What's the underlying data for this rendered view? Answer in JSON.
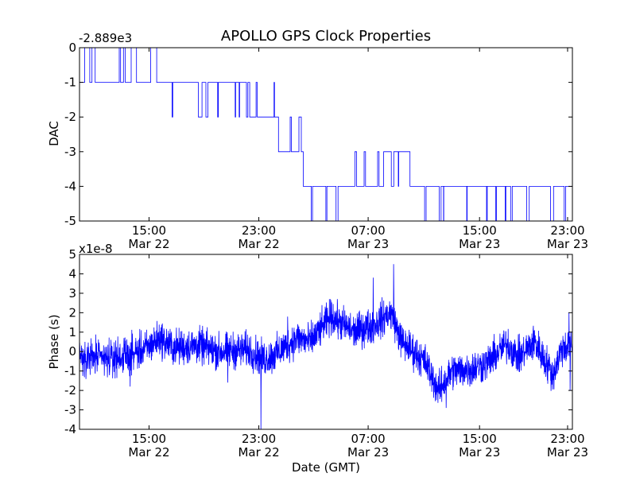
{
  "chart_data": [
    {
      "type": "line",
      "id": "dac",
      "title": "APOLLO GPS Clock Properties",
      "offset_label": "-2.889e3",
      "xlabel": "",
      "ylabel": "DAC",
      "ylim": [
        -5,
        0
      ],
      "yticks": [
        {
          "value": 0,
          "label": "0"
        },
        {
          "value": -1,
          "label": "-1"
        },
        {
          "value": -2,
          "label": "-2"
        },
        {
          "value": -3,
          "label": "-3"
        },
        {
          "value": -4,
          "label": "-4"
        },
        {
          "value": -5,
          "label": "-5"
        }
      ],
      "xlim_hours": [
        11.9,
        33.45
      ],
      "xticks": [
        {
          "hour": 14.94,
          "time": "15:00",
          "date": "Mar 22"
        },
        {
          "hour": 19.74,
          "time": "23:00",
          "date": "Mar 22"
        },
        {
          "hour": 24.52,
          "time": "07:00",
          "date": "Mar 23"
        },
        {
          "hour": 29.39,
          "time": "15:00",
          "date": "Mar 23"
        },
        {
          "hour": 33.24,
          "time": "23:00",
          "date": "Mar 23"
        }
      ],
      "color": "#0000ff",
      "segments": [
        {
          "start": 11.9,
          "end": 15.28,
          "base": -1,
          "alt": 0,
          "rate": 0.6
        },
        {
          "start": 15.28,
          "end": 15.73,
          "base": -1,
          "alt": -2,
          "rate": 0.05
        },
        {
          "start": 15.73,
          "end": 19.34,
          "base": -1,
          "alt": -2,
          "rate": 0.42
        },
        {
          "start": 19.34,
          "end": 20.6,
          "base": -2,
          "alt": -1,
          "rate": 0.35
        },
        {
          "start": 20.6,
          "end": 21.68,
          "base": -3,
          "alt": -2,
          "rate": 0.3
        },
        {
          "start": 21.68,
          "end": 23.94,
          "base": -4,
          "alt": -5,
          "rate": 0.5
        },
        {
          "start": 23.94,
          "end": 25.2,
          "base": -4,
          "alt": -3,
          "rate": 0.3
        },
        {
          "start": 25.2,
          "end": 26.35,
          "base": -3,
          "alt": -4,
          "rate": 0.35
        },
        {
          "start": 26.35,
          "end": 33.45,
          "base": -4,
          "alt": -5,
          "rate": 0.28
        }
      ]
    },
    {
      "type": "line",
      "id": "phase",
      "title": "",
      "offset_label": "x1e-8",
      "xlabel": "Date (GMT)",
      "ylabel": "Phase (s)",
      "ylim": [
        -4,
        5
      ],
      "yticks": [
        {
          "value": 5,
          "label": "5"
        },
        {
          "value": 4,
          "label": "4"
        },
        {
          "value": 3,
          "label": "3"
        },
        {
          "value": 2,
          "label": "2"
        },
        {
          "value": 1,
          "label": "1"
        },
        {
          "value": 0,
          "label": "0"
        },
        {
          "value": -1,
          "label": "-1"
        },
        {
          "value": -2,
          "label": "-2"
        },
        {
          "value": -3,
          "label": "-3"
        },
        {
          "value": -4,
          "label": "-4"
        }
      ],
      "xlim_hours": [
        11.9,
        33.45
      ],
      "xticks": [
        {
          "hour": 14.94,
          "time": "15:00",
          "date": "Mar 22"
        },
        {
          "hour": 19.74,
          "time": "23:00",
          "date": "Mar 22"
        },
        {
          "hour": 24.52,
          "time": "07:00",
          "date": "Mar 23"
        },
        {
          "hour": 29.39,
          "time": "15:00",
          "date": "Mar 23"
        },
        {
          "hour": 33.24,
          "time": "23:00",
          "date": "Mar 23"
        }
      ],
      "color": "#0000ff",
      "trend": [
        [
          11.9,
          -0.2
        ],
        [
          13.2,
          -0.4
        ],
        [
          14.0,
          -0.2
        ],
        [
          14.9,
          0.2
        ],
        [
          15.4,
          0.7
        ],
        [
          16.0,
          0.2
        ],
        [
          17.1,
          0.3
        ],
        [
          18.0,
          0.0
        ],
        [
          19.3,
          0.1
        ],
        [
          19.9,
          -0.4
        ],
        [
          20.4,
          -0.2
        ],
        [
          21.4,
          0.7
        ],
        [
          22.0,
          0.5
        ],
        [
          22.9,
          1.8
        ],
        [
          23.9,
          1.0
        ],
        [
          24.8,
          1.4
        ],
        [
          25.5,
          2.0
        ],
        [
          26.0,
          0.5
        ],
        [
          27.0,
          -0.5
        ],
        [
          27.6,
          -2.0
        ],
        [
          28.2,
          -1.0
        ],
        [
          29.0,
          -0.9
        ],
        [
          29.7,
          -0.6
        ],
        [
          30.6,
          0.4
        ],
        [
          31.1,
          -0.3
        ],
        [
          31.8,
          0.5
        ],
        [
          32.6,
          -1.2
        ],
        [
          33.0,
          0.2
        ],
        [
          33.45,
          0.3
        ]
      ],
      "noise_amplitude": 0.45,
      "spikes": [
        {
          "hour": 19.83,
          "value": -4.0
        },
        {
          "hour": 24.74,
          "value": 3.8
        },
        {
          "hour": 25.63,
          "value": 4.5
        },
        {
          "hour": 24.22,
          "value": 1.9
        },
        {
          "hour": 14.11,
          "value": -1.8
        },
        {
          "hour": 18.38,
          "value": -1.6
        },
        {
          "hour": 27.93,
          "value": -2.9
        },
        {
          "hour": 21.0,
          "value": 1.8
        },
        {
          "hour": 33.35,
          "value": -2.0
        },
        {
          "hour": 33.3,
          "value": 2.0
        }
      ]
    }
  ]
}
